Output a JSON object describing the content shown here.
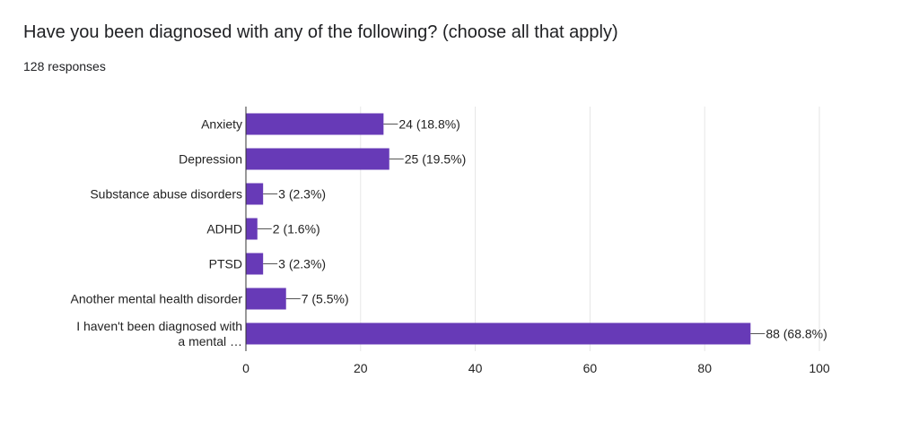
{
  "header": {
    "question": "Have you been diagnosed with any of the following? (choose all that apply)",
    "responses": "128 responses"
  },
  "colors": {
    "bar": "#673ab7",
    "grid": "#e6e6e6",
    "axis": "#333333",
    "label": "#222222"
  },
  "chart_data": {
    "type": "bar",
    "orientation": "horizontal",
    "categories": [
      "Anxiety",
      "Depression",
      "Substance abuse disorders",
      "ADHD",
      "PTSD",
      "Another mental health disorder",
      "I haven't been diagnosed with a mental …"
    ],
    "values": [
      24,
      25,
      3,
      2,
      3,
      7,
      88
    ],
    "data_labels": [
      "24 (18.8%)",
      "25 (19.5%)",
      "3 (2.3%)",
      "2 (1.6%)",
      "3 (2.3%)",
      "7 (5.5%)",
      "88 (68.8%)"
    ],
    "xlim": [
      0,
      100
    ],
    "xticks": [
      0,
      20,
      40,
      60,
      80,
      100
    ],
    "grid": true,
    "legend": "none"
  }
}
